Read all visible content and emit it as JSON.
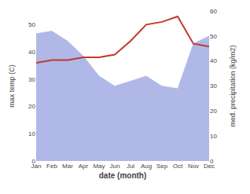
{
  "chart_data": {
    "type": "line",
    "categories": [
      "Jan",
      "Feb",
      "Mar",
      "Apr",
      "May",
      "Jun",
      "Jul",
      "Aug",
      "Sep",
      "Oct",
      "Nov",
      "Dec"
    ],
    "series": [
      {
        "type": "area",
        "axis": "y2",
        "color": "#b0b8e8",
        "values": [
          51,
          52,
          48,
          42,
          34,
          30,
          32,
          34,
          30,
          29,
          47,
          50
        ]
      },
      {
        "type": "line",
        "color": "#c0392b",
        "values": [
          36,
          37,
          37,
          38,
          38,
          39,
          44,
          50,
          51,
          53,
          43,
          42
        ]
      }
    ],
    "xlabel": "date (month)",
    "ylabel": "max temp (C)",
    "y2label": "med. precipitation (kg/m2)",
    "ylim": [
      0,
      55
    ],
    "yticks": [
      0,
      10,
      20,
      30,
      40,
      50
    ],
    "y2lim": [
      0,
      60
    ],
    "y2ticks": [
      0,
      10,
      20,
      30,
      40,
      50,
      60
    ],
    "grid": false
  }
}
